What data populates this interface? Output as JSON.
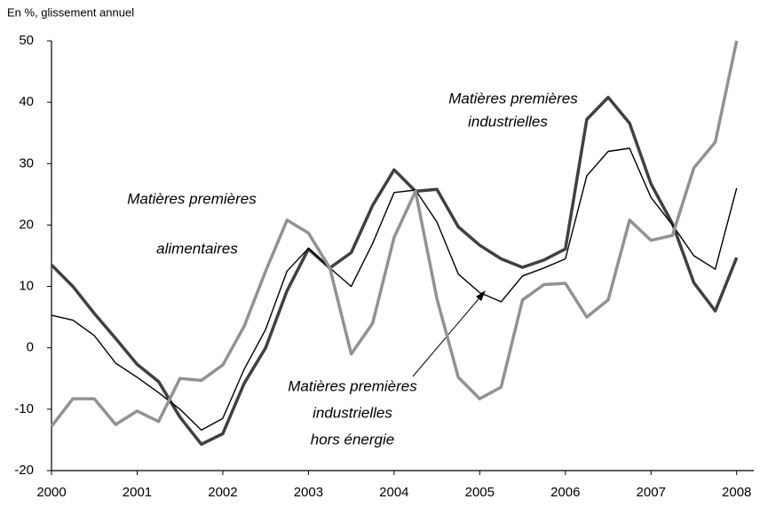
{
  "chart_data": {
    "type": "line",
    "ylabel": "En %, glissement annuel",
    "x": [
      2000,
      2000.25,
      2000.5,
      2000.75,
      2001,
      2001.25,
      2001.5,
      2001.75,
      2002,
      2002.25,
      2002.5,
      2002.75,
      2003,
      2003.25,
      2003.5,
      2003.75,
      2004,
      2004.25,
      2004.5,
      2004.75,
      2005,
      2005.25,
      2005.5,
      2005.75,
      2006,
      2006.25,
      2006.5,
      2006.75,
      2007,
      2007.25,
      2007.5,
      2007.75,
      2008
    ],
    "series": [
      {
        "color": "#404040",
        "width": 3.5,
        "values": [
          13.5,
          10,
          5.6,
          1.5,
          -2.7,
          -5.5,
          -11.3,
          -15.7,
          -14,
          -5.8,
          0,
          9.3,
          16.1,
          13,
          15.5,
          23.2,
          29,
          25.5,
          25.8,
          19.7,
          16.7,
          14.5,
          13.1,
          14.3,
          16.1,
          37.2,
          40.8,
          36.6,
          26.7,
          20.2,
          10.6,
          6,
          14.7
        ]
      },
      {
        "color": "#000000",
        "width": 1.4,
        "values": [
          5.3,
          4.5,
          2,
          -2.5,
          -4.8,
          -7.3,
          -10,
          -13.4,
          -11.5,
          -3.5,
          3,
          12.5,
          16.2,
          13,
          10,
          17,
          25.3,
          25.7,
          20.5,
          12,
          9,
          7.5,
          11.7,
          13,
          14.5,
          28,
          32,
          32.5,
          24.5,
          20,
          15,
          12.8,
          26
        ]
      },
      {
        "color": "#929292",
        "width": 3.5,
        "values": [
          -12.8,
          -8.3,
          -8.3,
          -12.5,
          -10.3,
          -12,
          -5,
          -5.3,
          -2.8,
          3.5,
          12.5,
          20.8,
          18.7,
          13,
          -1,
          4,
          18,
          25.5,
          8,
          -4.8,
          -8.3,
          -6.4,
          7.8,
          10.3,
          10.5,
          5,
          7.8,
          20.8,
          17.5,
          18.3,
          29.3,
          33.5,
          50
        ]
      }
    ],
    "xlim": [
      2000,
      2008.2
    ],
    "xticks": [
      2000,
      2001,
      2002,
      2003,
      2004,
      2005,
      2006,
      2007,
      2008
    ],
    "ylim": [
      -20,
      50
    ],
    "yticks": [
      -20,
      -10,
      0,
      10,
      20,
      30,
      40,
      50
    ],
    "annotations": [
      {
        "lines": [
          "Matières premières",
          "industrielles"
        ]
      },
      {
        "lines": [
          "Matières premières",
          "alimentaires"
        ]
      },
      {
        "lines": [
          "Matières premières",
          "industrielles",
          "hors énergie"
        ]
      }
    ]
  }
}
